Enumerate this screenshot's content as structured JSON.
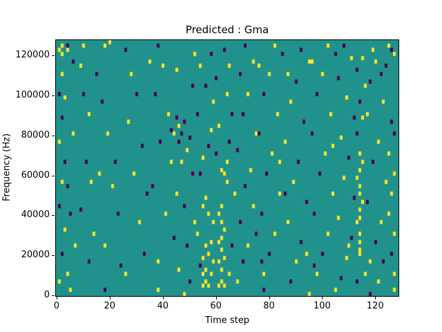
{
  "chart_data": {
    "type": "heatmap",
    "title": "Predicted : Gma",
    "xlabel": "Time step",
    "ylabel": "Frequency (Hz)",
    "x_ticks": [
      0,
      20,
      40,
      60,
      80,
      100,
      120
    ],
    "y_ticks": [
      0,
      20000,
      40000,
      60000,
      80000,
      100000,
      120000
    ],
    "x_range": [
      0,
      129
    ],
    "y_range": [
      0,
      128000
    ],
    "grid": {
      "cols": 129,
      "rows": 64
    },
    "legend": "none",
    "colors": {
      "background": "#21918c",
      "high": "#fde725",
      "low": "#440154",
      "axis": "#000000",
      "figure_background": "#ffffff"
    },
    "cells": [
      [
        1,
        61,
        1
      ],
      [
        2,
        62,
        1
      ],
      [
        2,
        60,
        1
      ],
      [
        4,
        62,
        -1
      ],
      [
        4,
        61,
        1
      ],
      [
        2,
        55,
        1
      ],
      [
        1,
        50,
        -1
      ],
      [
        3,
        49,
        1
      ],
      [
        2,
        44,
        -1
      ],
      [
        1,
        38,
        1
      ],
      [
        3,
        33,
        -1
      ],
      [
        2,
        28,
        1
      ],
      [
        4,
        27,
        -1
      ],
      [
        1,
        22,
        -1
      ],
      [
        3,
        16,
        1
      ],
      [
        2,
        10,
        -1
      ],
      [
        4,
        5,
        1
      ],
      [
        1,
        3,
        1
      ],
      [
        6,
        58,
        -1
      ],
      [
        6,
        40,
        1
      ],
      [
        5,
        20,
        -1
      ],
      [
        7,
        12,
        1
      ],
      [
        5,
        1,
        1
      ],
      [
        9,
        57,
        1
      ],
      [
        10,
        50,
        -1
      ],
      [
        12,
        45,
        1
      ],
      [
        11,
        33,
        -1
      ],
      [
        13,
        28,
        1
      ],
      [
        9,
        21,
        -1
      ],
      [
        14,
        15,
        1
      ],
      [
        12,
        8,
        -1
      ],
      [
        10,
        62,
        1
      ],
      [
        15,
        55,
        -1
      ],
      [
        18,
        62,
        1
      ],
      [
        20,
        63,
        1
      ],
      [
        17,
        48,
        -1
      ],
      [
        19,
        40,
        1
      ],
      [
        22,
        33,
        -1
      ],
      [
        21,
        27,
        1
      ],
      [
        23,
        20,
        -1
      ],
      [
        18,
        12,
        1
      ],
      [
        24,
        7,
        -1
      ],
      [
        16,
        30,
        1
      ],
      [
        18,
        1,
        -1
      ],
      [
        26,
        61,
        -1
      ],
      [
        28,
        55,
        1
      ],
      [
        30,
        50,
        -1
      ],
      [
        27,
        43,
        1
      ],
      [
        32,
        37,
        -1
      ],
      [
        29,
        30,
        1
      ],
      [
        34,
        25,
        -1
      ],
      [
        31,
        18,
        1
      ],
      [
        33,
        10,
        -1
      ],
      [
        26,
        5,
        1
      ],
      [
        35,
        58,
        1
      ],
      [
        38,
        62,
        -1
      ],
      [
        40,
        57,
        1
      ],
      [
        37,
        50,
        -1
      ],
      [
        42,
        45,
        1
      ],
      [
        39,
        38,
        -1
      ],
      [
        43,
        33,
        1
      ],
      [
        36,
        27,
        -1
      ],
      [
        41,
        20,
        1
      ],
      [
        44,
        14,
        -1
      ],
      [
        38,
        8,
        1
      ],
      [
        44,
        40,
        1
      ],
      [
        43,
        41,
        -1
      ],
      [
        38,
        1,
        1
      ],
      [
        45,
        44,
        -1
      ],
      [
        46,
        42,
        1
      ],
      [
        47,
        40,
        -1
      ],
      [
        48,
        43,
        -1
      ],
      [
        46,
        38,
        -1
      ],
      [
        49,
        36,
        1
      ],
      [
        50,
        39,
        -1
      ],
      [
        47,
        33,
        1
      ],
      [
        51,
        30,
        -1
      ],
      [
        45,
        25,
        1
      ],
      [
        48,
        22,
        -1
      ],
      [
        52,
        18,
        1
      ],
      [
        49,
        12,
        -1
      ],
      [
        46,
        6,
        1
      ],
      [
        50,
        3,
        -1
      ],
      [
        45,
        56,
        1
      ],
      [
        51,
        52,
        -1
      ],
      [
        52,
        60,
        1
      ],
      [
        48,
        0,
        1
      ],
      [
        55,
        2,
        1
      ],
      [
        56,
        3,
        1
      ],
      [
        57,
        2,
        1
      ],
      [
        55,
        5,
        1
      ],
      [
        56,
        6,
        1
      ],
      [
        58,
        5,
        1
      ],
      [
        55,
        9,
        1
      ],
      [
        57,
        10,
        1
      ],
      [
        56,
        12,
        1
      ],
      [
        58,
        13,
        1
      ],
      [
        54,
        7,
        -1
      ],
      [
        59,
        8,
        1
      ],
      [
        53,
        15,
        1
      ],
      [
        54,
        30,
        -1
      ],
      [
        55,
        34,
        1
      ],
      [
        57,
        37,
        -1
      ],
      [
        58,
        41,
        1
      ],
      [
        53,
        45,
        -1
      ],
      [
        59,
        48,
        1
      ],
      [
        56,
        52,
        -1
      ],
      [
        54,
        57,
        1
      ],
      [
        58,
        60,
        -1
      ],
      [
        55,
        22,
        1
      ],
      [
        56,
        24,
        1
      ],
      [
        57,
        20,
        1
      ],
      [
        59,
        18,
        1
      ],
      [
        61,
        2,
        1
      ],
      [
        62,
        3,
        1
      ],
      [
        63,
        2,
        1
      ],
      [
        62,
        6,
        1
      ],
      [
        61,
        8,
        1
      ],
      [
        63,
        9,
        1
      ],
      [
        62,
        11,
        1
      ],
      [
        61,
        13,
        1
      ],
      [
        62,
        14,
        1
      ],
      [
        63,
        16,
        1
      ],
      [
        62,
        18,
        1
      ],
      [
        61,
        20,
        1
      ],
      [
        62,
        22,
        1
      ],
      [
        64,
        28,
        1
      ],
      [
        63,
        30,
        1
      ],
      [
        62,
        31,
        1
      ],
      [
        64,
        33,
        1
      ],
      [
        60,
        35,
        -1
      ],
      [
        65,
        38,
        -1
      ],
      [
        61,
        42,
        1
      ],
      [
        66,
        45,
        -1
      ],
      [
        64,
        50,
        1
      ],
      [
        60,
        54,
        -1
      ],
      [
        65,
        57,
        1
      ],
      [
        63,
        61,
        -1
      ],
      [
        66,
        12,
        -1
      ],
      [
        65,
        5,
        1
      ],
      [
        68,
        3,
        1
      ],
      [
        70,
        8,
        -1
      ],
      [
        72,
        12,
        1
      ],
      [
        69,
        18,
        -1
      ],
      [
        74,
        22,
        1
      ],
      [
        71,
        27,
        -1
      ],
      [
        73,
        31,
        1
      ],
      [
        68,
        36,
        -1
      ],
      [
        75,
        40,
        1
      ],
      [
        70,
        45,
        -1
      ],
      [
        72,
        50,
        1
      ],
      [
        69,
        55,
        -1
      ],
      [
        74,
        58,
        1
      ],
      [
        71,
        62,
        -1
      ],
      [
        67,
        25,
        1
      ],
      [
        75,
        15,
        -1
      ],
      [
        78,
        5,
        1
      ],
      [
        80,
        10,
        -1
      ],
      [
        82,
        15,
        1
      ],
      [
        77,
        20,
        -1
      ],
      [
        84,
        25,
        1
      ],
      [
        79,
        30,
        -1
      ],
      [
        81,
        35,
        1
      ],
      [
        76,
        40,
        -1
      ],
      [
        83,
        45,
        1
      ],
      [
        78,
        50,
        -1
      ],
      [
        80,
        55,
        1
      ],
      [
        85,
        60,
        -1
      ],
      [
        82,
        62,
        1
      ],
      [
        77,
        8,
        -1
      ],
      [
        84,
        33,
        1
      ],
      [
        76,
        57,
        1
      ],
      [
        78,
        1,
        -1
      ],
      [
        88,
        3,
        -1
      ],
      [
        90,
        8,
        1
      ],
      [
        92,
        13,
        -1
      ],
      [
        87,
        18,
        1
      ],
      [
        94,
        23,
        -1
      ],
      [
        89,
        28,
        1
      ],
      [
        91,
        33,
        -1
      ],
      [
        86,
        38,
        1
      ],
      [
        93,
        43,
        -1
      ],
      [
        88,
        48,
        1
      ],
      [
        90,
        53,
        -1
      ],
      [
        95,
        58,
        1
      ],
      [
        92,
        61,
        -1
      ],
      [
        87,
        55,
        1
      ],
      [
        94,
        10,
        1
      ],
      [
        86,
        25,
        -1
      ],
      [
        95,
        0,
        1
      ],
      [
        98,
        5,
        1
      ],
      [
        100,
        10,
        -1
      ],
      [
        102,
        15,
        1
      ],
      [
        97,
        20,
        -1
      ],
      [
        104,
        25,
        1
      ],
      [
        99,
        30,
        -1
      ],
      [
        101,
        35,
        1
      ],
      [
        96,
        40,
        -1
      ],
      [
        103,
        45,
        1
      ],
      [
        98,
        50,
        -1
      ],
      [
        100,
        55,
        1
      ],
      [
        105,
        60,
        -1
      ],
      [
        102,
        62,
        1
      ],
      [
        97,
        7,
        -1
      ],
      [
        104,
        37,
        1
      ],
      [
        96,
        58,
        1
      ],
      [
        105,
        1,
        1
      ],
      [
        107,
        4,
        -1
      ],
      [
        109,
        9,
        1
      ],
      [
        111,
        14,
        -1
      ],
      [
        106,
        19,
        1
      ],
      [
        112,
        24,
        -1
      ],
      [
        108,
        29,
        1
      ],
      [
        110,
        34,
        -1
      ],
      [
        107,
        39,
        1
      ],
      [
        112,
        44,
        -1
      ],
      [
        109,
        49,
        1
      ],
      [
        106,
        54,
        -1
      ],
      [
        111,
        59,
        1
      ],
      [
        108,
        62,
        -1
      ],
      [
        110,
        12,
        1
      ],
      [
        114,
        10,
        1
      ],
      [
        114,
        11,
        1
      ],
      [
        114,
        13,
        1
      ],
      [
        114,
        15,
        1
      ],
      [
        113,
        18,
        1
      ],
      [
        114,
        19,
        1
      ],
      [
        114,
        21,
        1
      ],
      [
        115,
        23,
        1
      ],
      [
        114,
        25,
        1
      ],
      [
        114,
        27,
        1
      ],
      [
        113,
        29,
        1
      ],
      [
        114,
        31,
        1
      ],
      [
        115,
        33,
        1
      ],
      [
        114,
        35,
        1
      ],
      [
        113,
        40,
        -1
      ],
      [
        115,
        44,
        1
      ],
      [
        114,
        48,
        -1
      ],
      [
        116,
        52,
        1
      ],
      [
        113,
        56,
        -1
      ],
      [
        115,
        59,
        1
      ],
      [
        116,
        5,
        1
      ],
      [
        113,
        3,
        -1
      ],
      [
        118,
        8,
        1
      ],
      [
        120,
        13,
        -1
      ],
      [
        122,
        18,
        1
      ],
      [
        117,
        23,
        -1
      ],
      [
        124,
        28,
        1
      ],
      [
        119,
        33,
        -1
      ],
      [
        121,
        38,
        1
      ],
      [
        126,
        43,
        -1
      ],
      [
        123,
        48,
        1
      ],
      [
        118,
        53,
        -1
      ],
      [
        120,
        58,
        1
      ],
      [
        125,
        62,
        1
      ],
      [
        127,
        60,
        1
      ],
      [
        126,
        61,
        -1
      ],
      [
        122,
        55,
        -1
      ],
      [
        127,
        30,
        1
      ],
      [
        125,
        20,
        1
      ],
      [
        126,
        10,
        -1
      ],
      [
        127,
        5,
        1
      ],
      [
        124,
        57,
        -1
      ],
      [
        119,
        61,
        1
      ],
      [
        117,
        45,
        1
      ],
      [
        127,
        40,
        -1
      ],
      [
        123,
        8,
        -1
      ],
      [
        125,
        35,
        1
      ],
      [
        121,
        3,
        1
      ],
      [
        127,
        15,
        1
      ],
      [
        126,
        25,
        1
      ],
      [
        118,
        0,
        -1
      ],
      [
        127,
        1,
        1
      ]
    ]
  }
}
